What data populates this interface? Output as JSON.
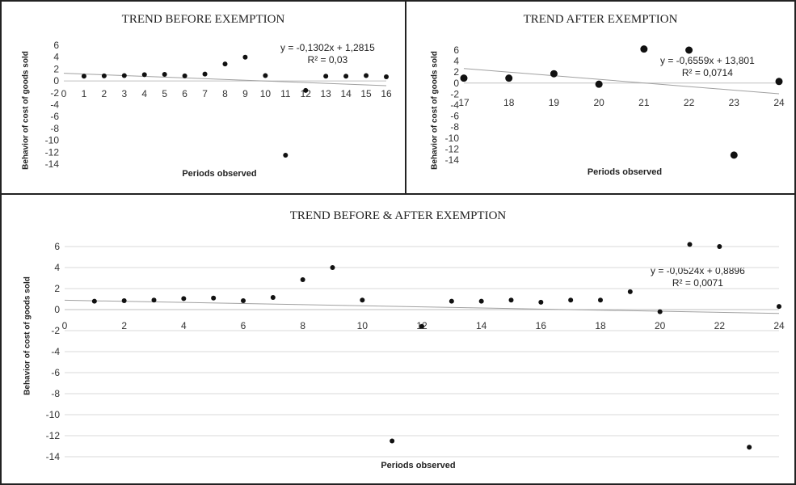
{
  "chart_data": [
    {
      "type": "scatter",
      "title": "TREND BEFORE EXEMPTION",
      "xlabel": "Periods observed",
      "ylabel": "Behavior of cost of goods sold",
      "x": [
        1,
        2,
        3,
        4,
        5,
        6,
        7,
        8,
        9,
        10,
        11,
        12,
        13,
        14,
        15,
        16
      ],
      "y": [
        0.8,
        0.85,
        0.9,
        1.05,
        1.1,
        0.85,
        1.15,
        2.85,
        4.0,
        0.9,
        -12.5,
        -1.6,
        0.8,
        0.8,
        0.9,
        0.7
      ],
      "xlim": [
        0,
        16
      ],
      "ylim": [
        -14,
        6
      ],
      "xticks": [
        0,
        1,
        2,
        3,
        4,
        5,
        6,
        7,
        8,
        9,
        10,
        11,
        12,
        13,
        14,
        15,
        16
      ],
      "yticks": [
        6,
        4,
        2,
        0,
        -2,
        -4,
        -6,
        -8,
        -10,
        -12,
        -14
      ],
      "trendline": {
        "slope": -0.1302,
        "intercept": 1.2815
      },
      "equation": "y = -0,1302x + 1,2815",
      "r2": "R² = 0,03",
      "grid": false
    },
    {
      "type": "scatter",
      "title": "TREND AFTER EXEMPTION",
      "xlabel": "Periods observed",
      "ylabel": "Behavior of cost of goods sold",
      "x": [
        17,
        18,
        19,
        20,
        21,
        22,
        23,
        24
      ],
      "y": [
        0.9,
        0.9,
        1.7,
        -0.2,
        6.2,
        6.0,
        -13.1,
        0.3
      ],
      "xlim": [
        17,
        24
      ],
      "ylim": [
        -14,
        6
      ],
      "xticks": [
        17,
        18,
        19,
        20,
        21,
        22,
        23,
        24
      ],
      "yticks": [
        6,
        4,
        2,
        0,
        -2,
        -4,
        -6,
        -8,
        -10,
        -12,
        -14
      ],
      "trendline": {
        "slope": -0.6559,
        "intercept": 13.801
      },
      "equation": "y = -0,6559x + 13,801",
      "r2": "R² = 0,0714",
      "grid": false
    },
    {
      "type": "scatter",
      "title": "TREND BEFORE & AFTER EXEMPTION",
      "xlabel": "Periods observed",
      "ylabel": "Behavior of cost of goods sold",
      "x": [
        1,
        2,
        3,
        4,
        5,
        6,
        7,
        8,
        9,
        10,
        11,
        12,
        13,
        14,
        15,
        16,
        17,
        18,
        19,
        20,
        21,
        22,
        23,
        24
      ],
      "y": [
        0.8,
        0.85,
        0.9,
        1.05,
        1.1,
        0.85,
        1.15,
        2.85,
        4.0,
        0.9,
        -12.5,
        -1.6,
        0.8,
        0.8,
        0.9,
        0.7,
        0.9,
        0.9,
        1.7,
        -0.2,
        6.2,
        6.0,
        -13.1,
        0.3
      ],
      "xlim": [
        0,
        24
      ],
      "ylim": [
        -14,
        6
      ],
      "xticks": [
        0,
        2,
        4,
        6,
        8,
        10,
        12,
        14,
        16,
        18,
        20,
        22,
        24
      ],
      "yticks": [
        6,
        4,
        2,
        0,
        -2,
        -4,
        -6,
        -8,
        -10,
        -12,
        -14
      ],
      "trendline": {
        "slope": -0.0524,
        "intercept": 0.8896
      },
      "equation": "y = -0,0524x + 0,8896",
      "r2": "R² = 0,0071",
      "grid": true
    }
  ]
}
